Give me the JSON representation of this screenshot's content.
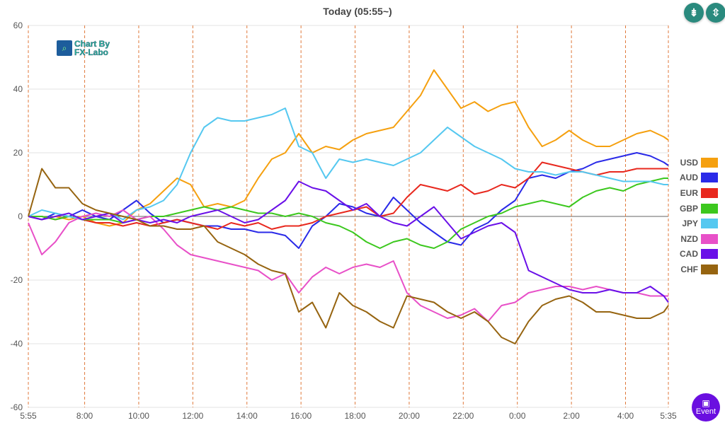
{
  "header": {
    "title": "Today  (05:55~)",
    "buttons": [
      {
        "name": "collapse",
        "icon": "compress-vertical-icon"
      },
      {
        "name": "expand",
        "icon": "expand-vertical-icon"
      }
    ]
  },
  "logo": {
    "line1": "Chart By",
    "line2": "FX-Labo"
  },
  "event_button": {
    "label": "Event",
    "icon": "calendar-icon",
    "color": "#6a0fe0"
  },
  "chart_data": {
    "type": "line",
    "title": "Today  (05:55~)",
    "xlabel": "",
    "ylabel": "",
    "ylim": [
      -60,
      60
    ],
    "yticks": [
      60,
      40,
      20,
      0,
      -20,
      -40,
      -60
    ],
    "x_unit": "hours since 5:55",
    "xlim": [
      0,
      23.667
    ],
    "xticks": [
      {
        "label": "5:55",
        "h": 0
      },
      {
        "label": "8:00",
        "h": 2.083
      },
      {
        "label": "10:00",
        "h": 4.083
      },
      {
        "label": "12:00",
        "h": 6.083
      },
      {
        "label": "14:00",
        "h": 8.083
      },
      {
        "label": "16:00",
        "h": 10.083
      },
      {
        "label": "18:00",
        "h": 12.083
      },
      {
        "label": "20:00",
        "h": 14.083
      },
      {
        "label": "22:00",
        "h": 16.083
      },
      {
        "label": "0:00",
        "h": 18.083
      },
      {
        "label": "2:00",
        "h": 20.083
      },
      {
        "label": "4:00",
        "h": 22.083
      },
      {
        "label": "5:35",
        "h": 23.667
      }
    ],
    "x": [
      0,
      0.5,
      1,
      1.5,
      2,
      2.5,
      3,
      3.5,
      4,
      4.5,
      5,
      5.5,
      6,
      6.5,
      7,
      7.5,
      8,
      8.5,
      9,
      9.5,
      10,
      10.5,
      11,
      11.5,
      12,
      12.5,
      13,
      13.5,
      14,
      14.5,
      15,
      15.5,
      16,
      16.5,
      17,
      17.5,
      18,
      18.5,
      19,
      19.5,
      20,
      20.5,
      21,
      21.5,
      22,
      22.5,
      23,
      23.5,
      23.667
    ],
    "legend_position": "right",
    "series": [
      {
        "name": "USD",
        "color": "#f5a00f",
        "values": [
          0,
          -1,
          0,
          -1,
          0,
          -2,
          -3,
          -2,
          2,
          4,
          8,
          12,
          10,
          3,
          4,
          3,
          5,
          12,
          18,
          20,
          26,
          20,
          22,
          21,
          24,
          26,
          27,
          28,
          33,
          38,
          46,
          40,
          34,
          36,
          33,
          35,
          36,
          28,
          22,
          24,
          27,
          24,
          22,
          22,
          24,
          26,
          27,
          25,
          24
        ]
      },
      {
        "name": "AUD",
        "color": "#2a2ae8",
        "values": [
          0,
          -1,
          1,
          0,
          2,
          0,
          -1,
          2,
          5,
          1,
          -2,
          -1,
          -2,
          -3,
          -3,
          -4,
          -4,
          -5,
          -5,
          -6,
          -10,
          -3,
          0,
          4,
          3,
          1,
          0,
          6,
          2,
          -2,
          -5,
          -8,
          -9,
          -4,
          -2,
          2,
          5,
          12,
          13,
          12,
          14,
          15,
          17,
          18,
          19,
          20,
          19,
          17,
          16
        ]
      },
      {
        "name": "EUR",
        "color": "#e8281e",
        "values": [
          0,
          0,
          -1,
          0,
          -1,
          -2,
          -2,
          -3,
          -2,
          -3,
          -2,
          -1,
          -2,
          -3,
          -4,
          -2,
          -3,
          -2,
          -4,
          -3,
          -3,
          -2,
          0,
          1,
          2,
          3,
          0,
          1,
          6,
          10,
          9,
          8,
          10,
          7,
          8,
          10,
          9,
          12,
          17,
          16,
          15,
          14,
          13,
          14,
          14,
          15,
          15,
          15,
          15
        ]
      },
      {
        "name": "GBP",
        "color": "#3cc81e",
        "values": [
          0,
          0,
          -1,
          0,
          -1,
          -1,
          -1,
          -2,
          -1,
          0,
          0,
          1,
          2,
          3,
          2,
          3,
          2,
          1,
          1,
          0,
          1,
          0,
          -2,
          -3,
          -5,
          -8,
          -10,
          -8,
          -7,
          -9,
          -10,
          -8,
          -4,
          -2,
          0,
          1,
          3,
          4,
          5,
          4,
          3,
          6,
          8,
          9,
          8,
          10,
          11,
          12,
          12
        ]
      },
      {
        "name": "JPY",
        "color": "#55c8f0",
        "values": [
          0,
          2,
          1,
          0,
          -1,
          0,
          1,
          -1,
          2,
          3,
          5,
          10,
          20,
          28,
          31,
          30,
          30,
          31,
          32,
          34,
          22,
          20,
          12,
          18,
          17,
          18,
          17,
          16,
          18,
          20,
          24,
          28,
          25,
          22,
          20,
          18,
          15,
          14,
          14,
          13,
          14,
          14,
          13,
          12,
          11,
          11,
          11,
          10,
          10
        ]
      },
      {
        "name": "NZD",
        "color": "#e850c8",
        "values": [
          -2,
          -12,
          -8,
          -2,
          0,
          1,
          0,
          2,
          -1,
          0,
          -4,
          -9,
          -12,
          -13,
          -14,
          -15,
          -16,
          -17,
          -20,
          -18,
          -24,
          -19,
          -16,
          -18,
          -16,
          -15,
          -16,
          -14,
          -24,
          -28,
          -30,
          -32,
          -31,
          -29,
          -33,
          -28,
          -27,
          -24,
          -23,
          -22,
          -22,
          -23,
          -22,
          -23,
          -24,
          -24,
          -25,
          -25,
          -25
        ]
      },
      {
        "name": "CAD",
        "color": "#6a10e8",
        "values": [
          0,
          -1,
          0,
          1,
          -1,
          0,
          1,
          -2,
          -1,
          -2,
          -1,
          -2,
          0,
          1,
          2,
          0,
          -2,
          -1,
          2,
          5,
          11,
          9,
          8,
          5,
          2,
          4,
          0,
          -2,
          -3,
          0,
          3,
          -2,
          -7,
          -5,
          -3,
          -2,
          -5,
          -17,
          -19,
          -21,
          -23,
          -24,
          -24,
          -23,
          -24,
          -24,
          -22,
          -25,
          -27
        ]
      },
      {
        "name": "CHF",
        "color": "#966410",
        "values": [
          0,
          15,
          9,
          9,
          4,
          2,
          1,
          0,
          -1,
          -3,
          -3,
          -4,
          -4,
          -3,
          -8,
          -10,
          -12,
          -15,
          -17,
          -18,
          -30,
          -27,
          -35,
          -24,
          -28,
          -30,
          -33,
          -35,
          -25,
          -26,
          -27,
          -30,
          -32,
          -30,
          -33,
          -38,
          -40,
          -33,
          -28,
          -26,
          -25,
          -27,
          -30,
          -30,
          -31,
          -32,
          -32,
          -30,
          -28
        ]
      }
    ]
  }
}
